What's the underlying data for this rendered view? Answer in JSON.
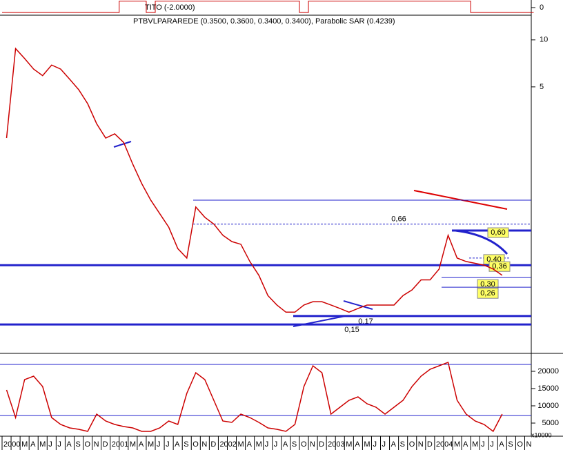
{
  "chart_data": [
    {
      "type": "step",
      "title": "TITO (-2.0000)",
      "color": "#cc0000",
      "ylim": [
        -2,
        2
      ],
      "yticks": [
        0
      ],
      "values": [
        -1.3,
        -1.3,
        -1.3,
        -1.3,
        -1.3,
        -1.3,
        -1.3,
        -1.3,
        -1.3,
        -1.3,
        -1.3,
        -1.3,
        -1.3,
        1.7,
        1.7,
        1.7,
        -1.3,
        1.7,
        1.7,
        1.7,
        1.7,
        1.7,
        1.7,
        1.7,
        1.7,
        1.7,
        1.7,
        1.7,
        1.7,
        1.7,
        1.7,
        1.7,
        1.7,
        -1.3,
        1.7,
        1.7,
        1.7,
        1.7,
        1.7,
        1.7,
        1.7,
        1.7,
        1.7,
        1.7,
        1.7,
        1.7,
        1.7,
        1.7,
        1.7,
        1.7,
        1.7,
        1.7,
        -1.3,
        -1.3,
        -1.3,
        -1.3,
        -1.3,
        -1.3,
        -1.3
      ]
    },
    {
      "type": "line",
      "log_scale": true,
      "title": "PTBVLPARAREDE (0.3500, 0.3600, 0.3400, 0.3400), Parabolic SAR (0.4239)",
      "color": "#cc0000",
      "ylim": [
        0.1,
        14.4
      ],
      "yticks": [
        10,
        5
      ],
      "categories": [
        "2000",
        null,
        "M",
        "A",
        "M",
        "J",
        "J",
        "A",
        "S",
        "O",
        "N",
        "D",
        "2001",
        null,
        "M",
        "A",
        "M",
        "J",
        "J",
        "A",
        "S",
        "O",
        "N",
        "D",
        "2002",
        null,
        "M",
        "A",
        "M",
        "J",
        "J",
        "A",
        "S",
        "O",
        "N",
        "D",
        "2003",
        null,
        "M",
        "A",
        "M",
        "J",
        "J",
        "A",
        "S",
        "O",
        "N",
        "D",
        "2004",
        null,
        "M",
        "A",
        "M",
        "J",
        "J",
        "A",
        "S",
        "O",
        "N"
      ],
      "values": [
        2.35,
        8.8,
        7.6,
        6.5,
        5.9,
        6.9,
        6.5,
        5.6,
        4.8,
        3.9,
        2.9,
        2.35,
        2.5,
        2.2,
        1.6,
        1.2,
        0.94,
        0.77,
        0.63,
        0.46,
        0.4,
        0.85,
        0.73,
        0.66,
        0.56,
        0.51,
        0.49,
        0.38,
        0.31,
        0.23,
        0.2,
        0.18,
        0.18,
        0.2,
        0.21,
        0.21,
        0.2,
        0.19,
        0.18,
        0.19,
        0.2,
        0.2,
        0.2,
        0.2,
        0.23,
        0.25,
        0.29,
        0.29,
        0.34,
        0.56,
        0.4,
        0.38,
        0.37,
        0.36,
        0.34,
        0.31,
        null,
        null,
        null
      ],
      "levels": [
        {
          "value": 0.66,
          "label": "0,66"
        },
        {
          "value": 0.6,
          "label": "0,60"
        },
        {
          "value": 0.4,
          "label": "0,40"
        },
        {
          "value": 0.36,
          "label": "0,36"
        },
        {
          "value": 0.3,
          "label": "0,30"
        },
        {
          "value": 0.26,
          "label": "0,26"
        },
        {
          "value": 0.17,
          "label": "0,17"
        },
        {
          "value": 0.15,
          "label": "0,15"
        }
      ]
    },
    {
      "type": "line",
      "color": "#cc0000",
      "ylim": [
        0,
        24600
      ],
      "yticks": [
        20000,
        15000,
        10000,
        5000
      ],
      "unit_label": "x10000",
      "reference_lines": [
        7200,
        22000
      ],
      "values": [
        14600,
        6600,
        17600,
        18600,
        15600,
        6600,
        4600,
        3600,
        3200,
        2600,
        7600,
        5600,
        4600,
        4000,
        3600,
        2600,
        2600,
        3600,
        5600,
        4600,
        13600,
        19600,
        17600,
        11600,
        5600,
        5200,
        7600,
        6600,
        5200,
        3600,
        3200,
        2600,
        4600,
        15600,
        21600,
        19600,
        7600,
        9600,
        11600,
        12600,
        10600,
        9600,
        7600,
        9600,
        11600,
        15600,
        18600,
        20600,
        21600,
        22600,
        11600,
        7600,
        5600,
        4600,
        2600,
        7600,
        null,
        null,
        null
      ]
    }
  ]
}
